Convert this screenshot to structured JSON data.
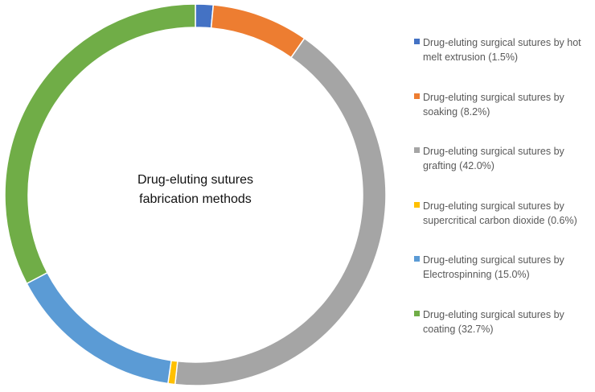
{
  "chart_data": {
    "type": "pie",
    "subtype": "doughnut",
    "center_label": [
      "Drug-eluting sutures",
      "fabrication methods"
    ],
    "legend_position": "right",
    "slices": [
      {
        "label": "Drug-eluting surgical sutures by hot melt extrusion (1.5%)",
        "legend_lines": [
          "Drug-eluting surgical sutures by hot",
          "melt extrusion (1.5%)"
        ],
        "value": 1.5,
        "color": "#4472C4"
      },
      {
        "label": "Drug-eluting surgical sutures by soaking (8.2%)",
        "legend_lines": [
          "Drug-eluting surgical sutures by",
          "soaking (8.2%)"
        ],
        "value": 8.2,
        "color": "#ED7D31"
      },
      {
        "label": "Drug-eluting surgical sutures by grafting (42.0%)",
        "legend_lines": [
          "Drug-eluting surgical sutures by",
          "grafting (42.0%)"
        ],
        "value": 42.0,
        "color": "#A5A5A5"
      },
      {
        "label": "Drug-eluting surgical sutures by supercritical carbon dioxide (0.6%)",
        "legend_lines": [
          "Drug-eluting surgical sutures by",
          "supercritical carbon dioxide (0.6%)"
        ],
        "value": 0.6,
        "color": "#FFC000"
      },
      {
        "label": "Drug-eluting surgical sutures by Electrospinning (15.0%)",
        "legend_lines": [
          "Drug-eluting surgical sutures by",
          "Electrospinning (15.0%)"
        ],
        "value": 15.0,
        "color": "#5B9BD5"
      },
      {
        "label": "Drug-eluting surgical sutures by coating (32.7%)",
        "legend_lines": [
          "Drug-eluting surgical sutures by",
          "coating (32.7%)"
        ],
        "value": 32.7,
        "color": "#70AD47"
      }
    ]
  }
}
